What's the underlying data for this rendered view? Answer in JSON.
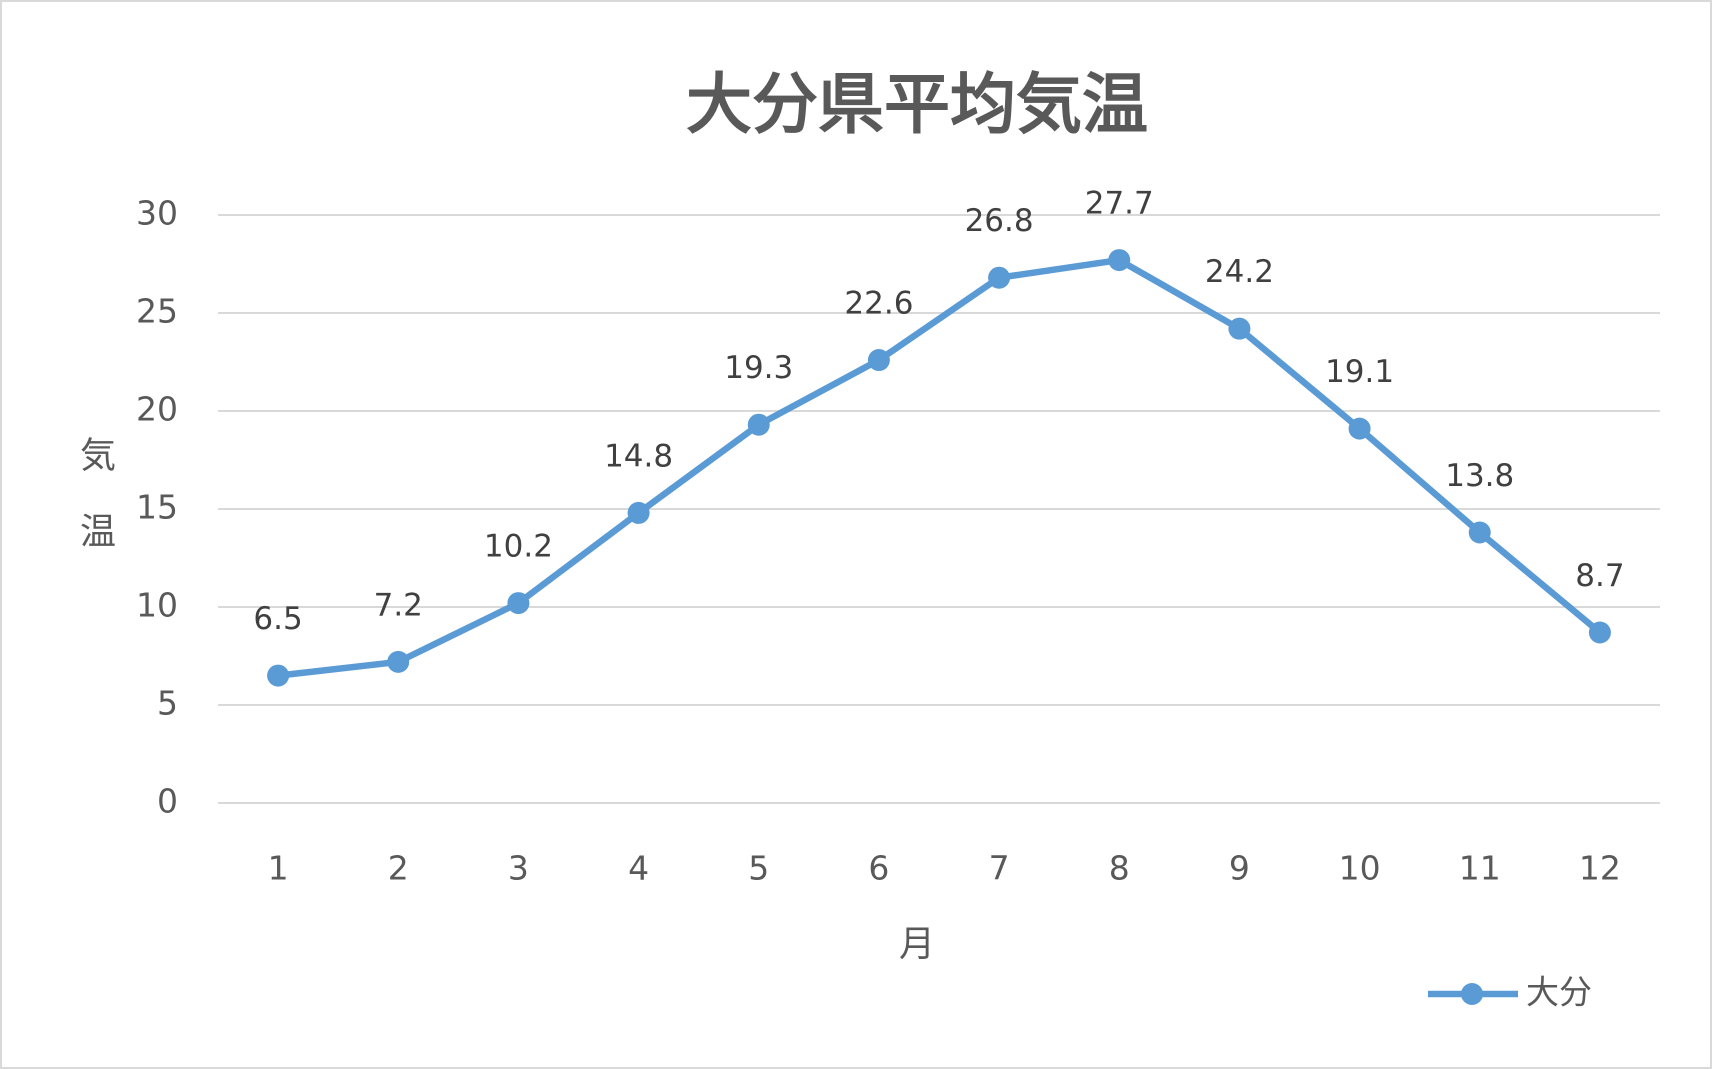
{
  "chart_data": {
    "type": "line",
    "title": "大分県平均気温",
    "x_label": "月",
    "y_label": "気温",
    "categories": [
      "1",
      "2",
      "3",
      "4",
      "5",
      "6",
      "7",
      "8",
      "9",
      "10",
      "11",
      "12"
    ],
    "series": [
      {
        "name": "大分",
        "color": "#5b9bd5",
        "values": [
          6.5,
          7.2,
          10.2,
          14.8,
          19.3,
          22.6,
          26.8,
          27.7,
          24.2,
          19.1,
          13.8,
          8.7
        ]
      }
    ],
    "ylim": [
      0,
      30
    ],
    "yticks": [
      0,
      5,
      10,
      15,
      20,
      25,
      30
    ],
    "grid": true,
    "legend": "bottom-right"
  }
}
